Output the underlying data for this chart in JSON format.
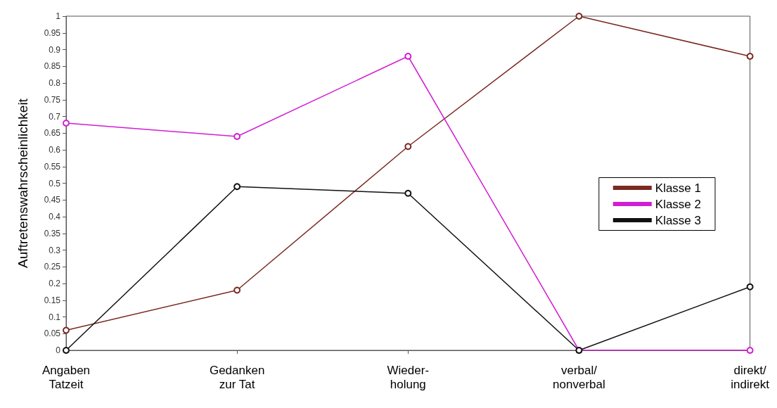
{
  "chart_data": {
    "type": "line",
    "ylabel": "Auftretenswahrscheinlichkeit",
    "categories": [
      "Angaben\nTatzeit",
      "Gedanken\nzur Tat",
      "Wieder-\nholung",
      "verbal/\nnonverbal",
      "direkt/\nindirekt"
    ],
    "series": [
      {
        "name": "Klasse 1",
        "color": "#7a2a22",
        "values": [
          0.06,
          0.18,
          0.61,
          1.0,
          0.88
        ]
      },
      {
        "name": "Klasse 2",
        "color": "#d21ed2",
        "values": [
          0.68,
          0.64,
          0.88,
          0,
          0
        ]
      },
      {
        "name": "Klasse 3",
        "color": "#111111",
        "values": [
          0.0,
          0.49,
          0.47,
          0,
          0.19
        ]
      }
    ],
    "ylim": [
      0,
      1
    ],
    "yticks": [
      0,
      0.05,
      0.1,
      0.15,
      0.2,
      0.25,
      0.3,
      0.35,
      0.4,
      0.45,
      0.5,
      0.55,
      0.6,
      0.65,
      0.7,
      0.75,
      0.8,
      0.85,
      0.9,
      0.95,
      1
    ],
    "grid": false,
    "legend": "right",
    "marker": "circle",
    "line_style": "solid"
  }
}
